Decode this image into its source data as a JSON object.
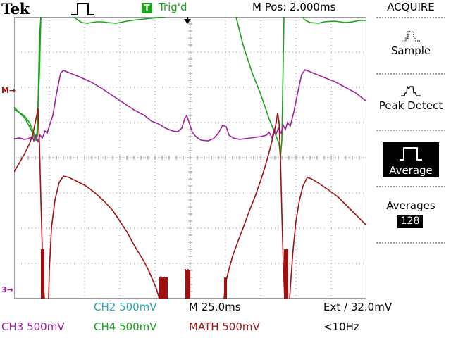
{
  "header": {
    "brand": "Tek",
    "trigger_badge": "T",
    "trigger_status": "Trig'd",
    "horizontal_position": "M Pos: 2.000ms",
    "menu_title": "ACQUIRE"
  },
  "acquire_menu": {
    "items": [
      {
        "label": "Sample",
        "selected": false,
        "icon": "sample-waveform-icon"
      },
      {
        "label": "Peak Detect",
        "selected": false,
        "icon": "peak-detect-waveform-icon"
      },
      {
        "label": "Average",
        "selected": true,
        "icon": "average-waveform-icon"
      }
    ],
    "averages_label": "Averages",
    "averages_value": "128"
  },
  "markers": {
    "math_marker": "M",
    "ch3_marker": "3"
  },
  "status": {
    "ch2": "CH2  500mV",
    "ch3": "CH3  500mV",
    "ch4": "CH4  500mV",
    "math": "MATH 500mV",
    "timebase": "M 25.0ms",
    "trigger": "Ext ∕ 32.0mV",
    "frequency": "<10Hz"
  },
  "colors": {
    "ch2": "#2aa7b0",
    "ch3": "#a020a0",
    "ch4": "#18a318",
    "math": "#a01010",
    "graticule": "#9a9a9a"
  }
}
